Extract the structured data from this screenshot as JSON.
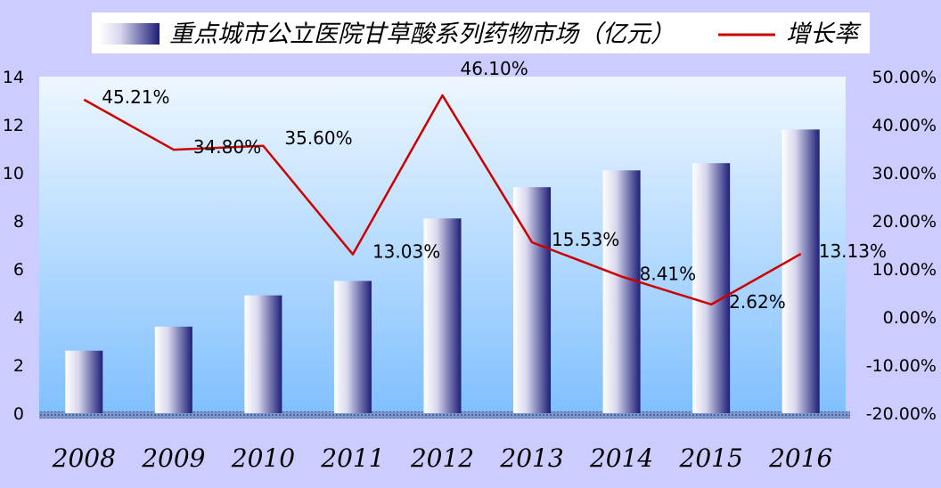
{
  "chart_data": {
    "type": "bar",
    "categories": [
      "2008",
      "2009",
      "2010",
      "2011",
      "2012",
      "2013",
      "2014",
      "2015",
      "2016"
    ],
    "series": [
      {
        "name": "重点城市公立医院甘草酸系列药物市场（亿元）",
        "type": "bar",
        "axis": "left",
        "values": [
          2.6,
          3.6,
          4.9,
          5.5,
          8.1,
          9.4,
          10.1,
          10.4,
          11.8
        ]
      },
      {
        "name": "增长率",
        "type": "line",
        "axis": "right",
        "values": [
          45.21,
          34.8,
          35.6,
          13.03,
          46.1,
          15.53,
          8.41,
          2.62,
          13.13
        ],
        "labels": [
          "45.21%",
          "34.80%",
          "35.60%",
          "13.03%",
          "46.10%",
          "15.53%",
          "8.41%",
          "2.62%",
          "13.13%"
        ]
      }
    ],
    "left_axis": {
      "ylim": [
        0,
        14
      ],
      "ticks": [
        "0",
        "2",
        "4",
        "6",
        "8",
        "10",
        "12",
        "14"
      ]
    },
    "right_axis": {
      "ylim": [
        -20,
        50
      ],
      "ticks": [
        "-20.00%",
        "-10.00%",
        "0.00%",
        "10.00%",
        "20.00%",
        "30.00%",
        "40.00%",
        "50.00%"
      ]
    },
    "legend_position": "top",
    "grid": false,
    "colors": {
      "bar_dark": "#1e1e78",
      "line": "#cc0000",
      "plot_top": "#e6f3ff",
      "plot_bottom": "#86c4ff",
      "page_bg": "#ccccff",
      "floor": "#5a7ab8"
    }
  }
}
